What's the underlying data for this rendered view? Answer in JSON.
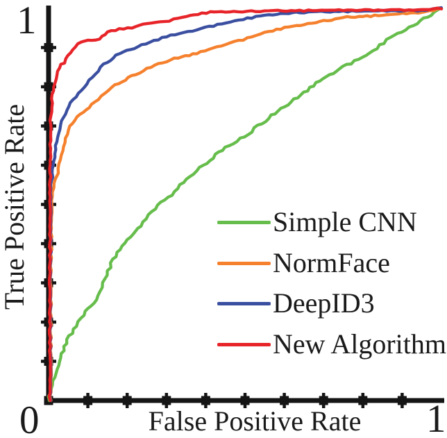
{
  "figure": {
    "background": "#ffffff",
    "axis_color": "#151515"
  },
  "axes": {
    "x_label": "False Positive Rate",
    "y_label": "True Positive Rate",
    "origin_label": "0",
    "x_max_label": "1",
    "y_max_label": "1"
  },
  "legend": {
    "position": "center-right",
    "entries": [
      {
        "label": "Simple CNN",
        "color": "#66bd4c"
      },
      {
        "label": "NormFace",
        "color": "#f5812e"
      },
      {
        "label": "DeepID3",
        "color": "#3b4fa0"
      },
      {
        "label": "New Algorithm",
        "color": "#e72429"
      }
    ]
  },
  "chart_data": {
    "type": "line",
    "title": "",
    "xlabel": "False Positive Rate",
    "ylabel": "True Positive Rate",
    "xlim": [
      0,
      1
    ],
    "ylim": [
      0,
      1
    ],
    "x_tick_step": 0.1,
    "y_tick_step": 0.1,
    "grid": false,
    "legend_position": "center-right",
    "series": [
      {
        "name": "Simple CNN",
        "color": "#66bd4c",
        "points": [
          [
            0,
            0
          ],
          [
            0.01,
            0.05
          ],
          [
            0.03,
            0.11
          ],
          [
            0.048,
            0.155
          ],
          [
            0.07,
            0.19
          ],
          [
            0.083,
            0.21
          ],
          [
            0.1,
            0.235
          ],
          [
            0.124,
            0.255
          ],
          [
            0.14,
            0.3
          ],
          [
            0.164,
            0.36
          ],
          [
            0.2,
            0.41
          ],
          [
            0.235,
            0.445
          ],
          [
            0.27,
            0.49
          ],
          [
            0.313,
            0.525
          ],
          [
            0.35,
            0.565
          ],
          [
            0.394,
            0.6
          ],
          [
            0.45,
            0.645
          ],
          [
            0.507,
            0.68
          ],
          [
            0.56,
            0.72
          ],
          [
            0.6,
            0.75
          ],
          [
            0.65,
            0.785
          ],
          [
            0.69,
            0.815
          ],
          [
            0.75,
            0.85
          ],
          [
            0.818,
            0.885
          ],
          [
            0.87,
            0.925
          ],
          [
            0.937,
            0.963
          ],
          [
            1,
            1
          ]
        ]
      },
      {
        "name": "NormFace",
        "color": "#f5812e",
        "points": [
          [
            0.005,
            0
          ],
          [
            0.006,
            0.3
          ],
          [
            0.007,
            0.45
          ],
          [
            0.009,
            0.52
          ],
          [
            0.018,
            0.565
          ],
          [
            0.023,
            0.58
          ],
          [
            0.035,
            0.637
          ],
          [
            0.053,
            0.7
          ],
          [
            0.08,
            0.73
          ],
          [
            0.118,
            0.76
          ],
          [
            0.16,
            0.8
          ],
          [
            0.212,
            0.827
          ],
          [
            0.27,
            0.855
          ],
          [
            0.32,
            0.872
          ],
          [
            0.377,
            0.885
          ],
          [
            0.44,
            0.905
          ],
          [
            0.495,
            0.92
          ],
          [
            0.55,
            0.938
          ],
          [
            0.601,
            0.95
          ],
          [
            0.68,
            0.965
          ],
          [
            0.76,
            0.977
          ],
          [
            0.85,
            0.982
          ],
          [
            0.901,
            0.986
          ],
          [
            0.96,
            0.99
          ],
          [
            1,
            1
          ]
        ]
      },
      {
        "name": "DeepID3",
        "color": "#3b4fa0",
        "points": [
          [
            0.004,
            0
          ],
          [
            0.005,
            0.4
          ],
          [
            0.006,
            0.54
          ],
          [
            0.012,
            0.6
          ],
          [
            0.02,
            0.66
          ],
          [
            0.03,
            0.703
          ],
          [
            0.05,
            0.75
          ],
          [
            0.083,
            0.791
          ],
          [
            0.11,
            0.825
          ],
          [
            0.141,
            0.857
          ],
          [
            0.18,
            0.885
          ],
          [
            0.247,
            0.91
          ],
          [
            0.3,
            0.928
          ],
          [
            0.377,
            0.945
          ],
          [
            0.43,
            0.958
          ],
          [
            0.495,
            0.972
          ],
          [
            0.55,
            0.982
          ],
          [
            0.601,
            0.988
          ],
          [
            0.65,
            0.99
          ],
          [
            0.75,
            0.992
          ],
          [
            0.85,
            0.993
          ],
          [
            0.95,
            0.994
          ],
          [
            1,
            1
          ]
        ]
      },
      {
        "name": "New Algorithm",
        "color": "#e72429",
        "points": [
          [
            0.003,
            0
          ],
          [
            0.004,
            0.55
          ],
          [
            0.005,
            0.715
          ],
          [
            0.01,
            0.78
          ],
          [
            0.02,
            0.83
          ],
          [
            0.03,
            0.858
          ],
          [
            0.04,
            0.862
          ],
          [
            0.06,
            0.895
          ],
          [
            0.083,
            0.915
          ],
          [
            0.1,
            0.918
          ],
          [
            0.13,
            0.922
          ],
          [
            0.15,
            0.94
          ],
          [
            0.18,
            0.947
          ],
          [
            0.212,
            0.95
          ],
          [
            0.25,
            0.962
          ],
          [
            0.295,
            0.965
          ],
          [
            0.33,
            0.975
          ],
          [
            0.38,
            0.985
          ],
          [
            0.412,
            0.99
          ],
          [
            0.46,
            0.992
          ],
          [
            0.55,
            0.993
          ],
          [
            0.65,
            0.994
          ],
          [
            0.75,
            0.995
          ],
          [
            0.85,
            0.995
          ],
          [
            0.95,
            0.996
          ],
          [
            1,
            1
          ]
        ]
      }
    ]
  }
}
